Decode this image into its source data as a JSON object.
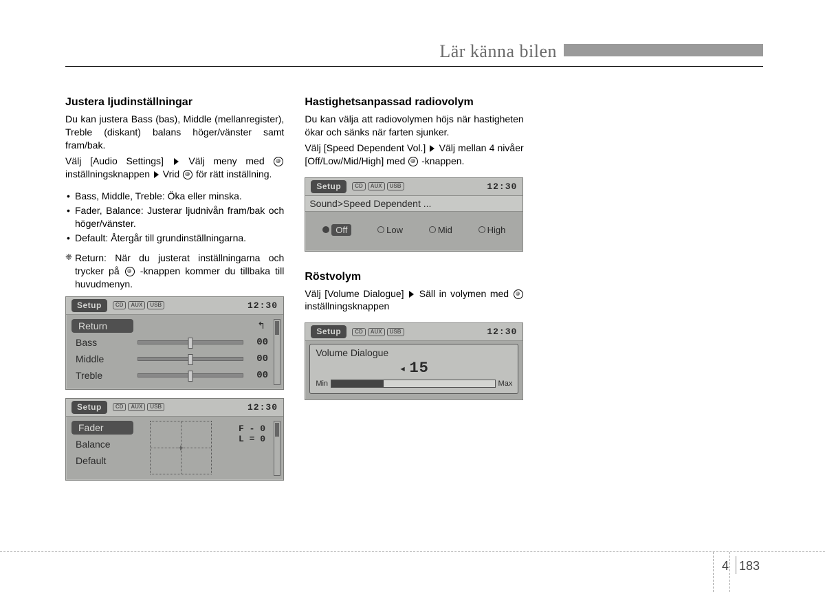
{
  "header": {
    "title": "Lär känna bilen",
    "bar_color": "#9a9a9a",
    "title_color": "#6b6b6b"
  },
  "footer": {
    "chapter": "4",
    "page": "183"
  },
  "col1": {
    "h": "Justera ljudinställningar",
    "p1": "Du kan justera Bass (bas), Middle (mellanregister), Treble (diskant) balans höger/vänster samt fram/bak.",
    "p2a": "Välj [Audio Settings]",
    "p2b": "Välj meny med",
    "p2c": "inställningsknappen",
    "p2d": "Vrid",
    "p2e": "för rätt inställning.",
    "b1": "Bass, Middle, Treble: Öka eller minska.",
    "b2": "Fader, Balance: Justerar ljudnivån fram/bak och höger/vänster.",
    "b3": "Default: Återgår till grundinställningarna.",
    "note_a": "Return: När du justerat inställningarna och trycker på",
    "note_b": "-knappen kommer du tillbaka till huvudmenyn."
  },
  "col2": {
    "h1": "Hastighetsanpassad radiovolym",
    "p1": "Du kan välja att radiovolymen höjs när hastigheten ökar och sänks när farten sjunker.",
    "p2a": "Välj [Speed Dependent Vol.]",
    "p2b": "Välj mellan 4 nivåer [Off/Low/Mid/High] med",
    "p2c": "-knappen.",
    "h2": "Röstvolym",
    "p3a": "Välj [Volume Dialogue]",
    "p3b": "Säll in volymen med",
    "p3c": "inställningsknappen"
  },
  "lcd": {
    "setup_label": "Setup",
    "tags": [
      "CD",
      "AUX",
      "USB"
    ],
    "time": "12:30",
    "scr1": {
      "return": "Return",
      "rows": [
        {
          "label": "Bass",
          "val": "00"
        },
        {
          "label": "Middle",
          "val": "00"
        },
        {
          "label": "Treble",
          "val": "00"
        }
      ]
    },
    "scr2": {
      "rows": [
        "Fader",
        "Balance",
        "Default"
      ],
      "fb": "F - 0",
      "lr": "L = 0"
    },
    "scr3": {
      "crumb": "Sound>Speed Dependent ...",
      "opts": [
        "Off",
        "Low",
        "Mid",
        "High"
      ]
    },
    "scr4": {
      "title": "Volume Dialogue",
      "value": "15",
      "min": "Min",
      "max": "Max",
      "fill_pct": 32
    }
  },
  "style": {
    "lcd_bg": "#a8a9a6",
    "lcd_top_bg": "#c0c1be",
    "lcd_dark": "#505050",
    "body_font_size": 14,
    "heading_font_size": 16
  }
}
